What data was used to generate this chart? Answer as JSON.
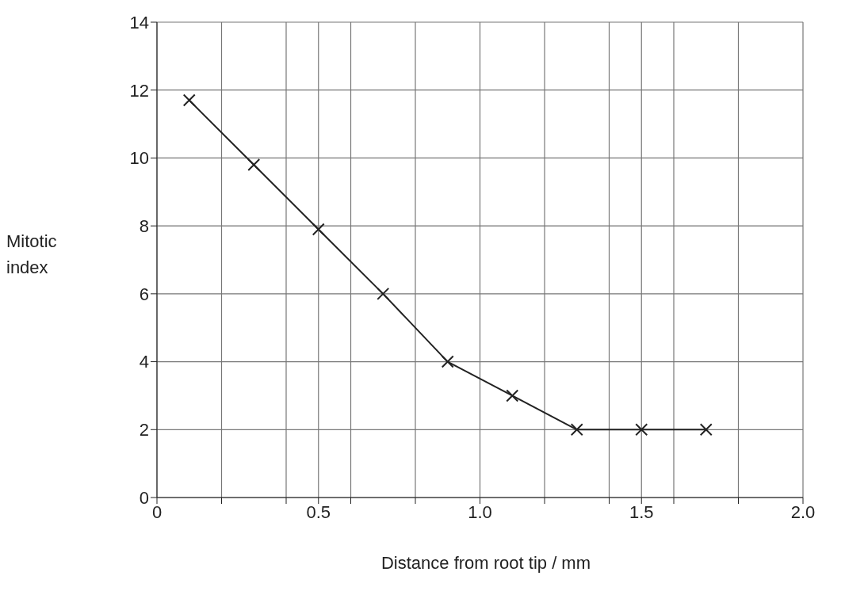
{
  "chart_data": {
    "type": "line",
    "xlabel": "Distance from root tip / mm",
    "ylabel": "Mitotic index",
    "x": [
      0.1,
      0.3,
      0.5,
      0.7,
      0.9,
      1.1,
      1.3,
      1.5,
      1.7
    ],
    "series": [
      {
        "color": "#222222",
        "values": [
          11.7,
          9.8,
          7.9,
          6.0,
          4.0,
          3.0,
          2.0,
          2.0,
          2.0
        ]
      }
    ],
    "xlim": [
      0,
      2
    ],
    "xticks": [
      0,
      {
        "value": 0.2,
        "label": null
      },
      {
        "value": 0.4,
        "label": null
      },
      0.5,
      {
        "value": 0.6,
        "label": null
      },
      {
        "value": 0.8,
        "label": null
      },
      {
        "value": 1,
        "label": "1.0"
      },
      {
        "value": 1.2,
        "label": null
      },
      {
        "value": 1.4,
        "label": null
      },
      1.5,
      {
        "value": 1.6,
        "label": null
      },
      {
        "value": 1.8,
        "label": null
      },
      {
        "value": 2,
        "label": "2.0"
      }
    ],
    "ylim": [
      0,
      14
    ],
    "yticks": [
      0,
      2,
      4,
      6,
      8,
      10,
      12,
      14
    ],
    "grid": true,
    "marker": "cross",
    "line_style": "solid"
  }
}
